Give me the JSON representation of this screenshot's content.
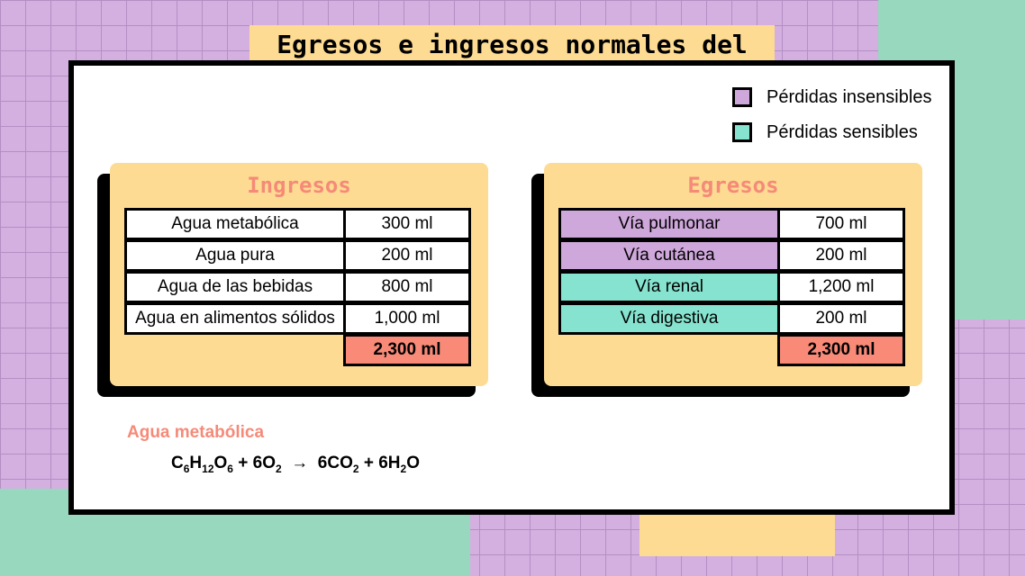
{
  "title": "Egresos e ingresos normales del agua",
  "legend": [
    "Pérdidas insensibles",
    "Pérdidas sensibles"
  ],
  "ingresos": {
    "heading": "Ingresos",
    "rows": [
      [
        "Agua metabólica",
        "300 ml"
      ],
      [
        "Agua pura",
        "200 ml"
      ],
      [
        "Agua de las bebidas",
        "800 ml"
      ],
      [
        "Agua en alimentos sólidos",
        "1,000 ml"
      ]
    ],
    "total": "2,300 ml"
  },
  "egresos": {
    "heading": "Egresos",
    "rows": [
      [
        "Vía pulmonar",
        "700 ml"
      ],
      [
        "Vía cutánea",
        "200 ml"
      ],
      [
        "Vía renal",
        "1,200 ml"
      ],
      [
        "Vía digestiva",
        "200 ml"
      ]
    ],
    "total": "2,300 ml"
  },
  "note": {
    "heading": "Agua metabólica",
    "formula": [
      {
        "text": "C",
        "sub": "6"
      },
      {
        "text": "H",
        "sub": "12"
      },
      {
        "text": "O",
        "sub": "6"
      },
      {
        "text": " + 6O",
        "sub": "2"
      },
      {
        "text": "  →  6CO",
        "sub": "2"
      },
      {
        "text": " + 6H",
        "sub": "2"
      },
      {
        "text": "O"
      }
    ]
  }
}
